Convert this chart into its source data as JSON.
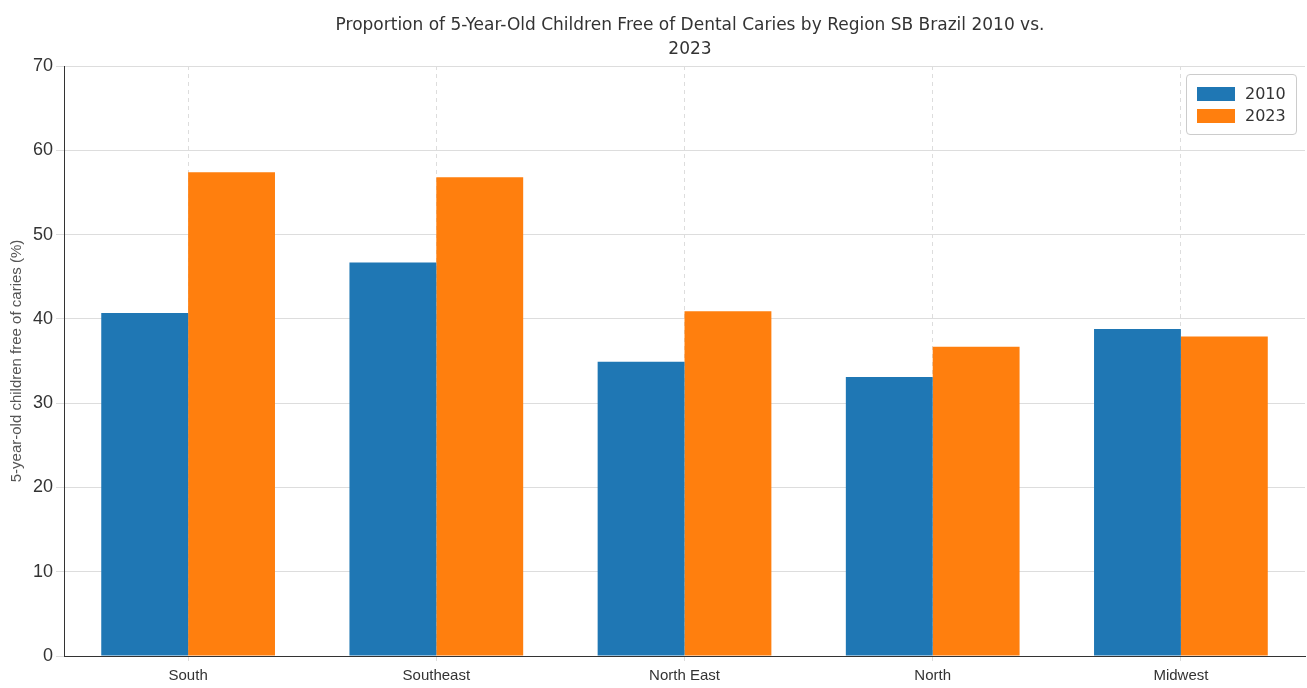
{
  "chart_data": {
    "type": "bar",
    "title": "Proportion of 5-Year-Old Children Free of Dental Caries by Region SB Brazil 2010 vs. 2023",
    "ylabel": "5-year-old children free of caries (%)",
    "categories": [
      "South",
      "Southeast",
      "North East",
      "North",
      "Midwest"
    ],
    "series": [
      {
        "name": "2010",
        "color": "#1f77b4",
        "values": [
          40.7,
          46.7,
          34.9,
          33.1,
          38.8
        ]
      },
      {
        "name": "2023",
        "color": "#ff7f0e",
        "values": [
          57.4,
          56.8,
          40.9,
          36.7,
          37.9
        ]
      }
    ],
    "ylim": [
      0,
      70
    ],
    "yticks": [
      0,
      10,
      20,
      30,
      40,
      50,
      60,
      70
    ],
    "grid": true,
    "legend": "top right"
  }
}
